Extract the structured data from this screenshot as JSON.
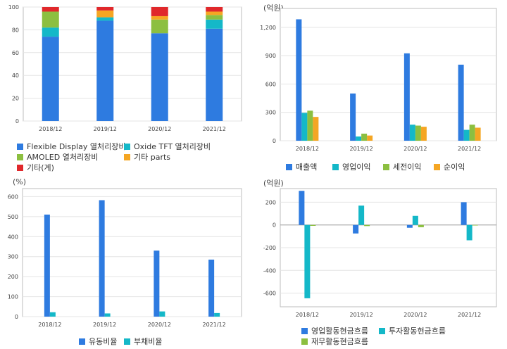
{
  "chart_data": [
    {
      "id": "composition",
      "type": "bar",
      "stacked": true,
      "categories": [
        "2018/12",
        "2019/12",
        "2020/12",
        "2021/12"
      ],
      "ylim": [
        0,
        100
      ],
      "yticks": [
        "0",
        "20",
        "40",
        "60",
        "80",
        "100"
      ],
      "series": [
        {
          "name": "Flexible Display 열처리장비",
          "color": "#2e7be0",
          "values": [
            74,
            88,
            77,
            81
          ]
        },
        {
          "name": "Oxide TFT 열처리장비",
          "color": "#14b8c8",
          "values": [
            8,
            3,
            0,
            8
          ]
        },
        {
          "name": "AMOLED 열처리장비",
          "color": "#8cbf40",
          "values": [
            14,
            0,
            12,
            4
          ]
        },
        {
          "name": "기타 parts",
          "color": "#f5a623",
          "values": [
            0,
            6,
            3,
            3
          ]
        },
        {
          "name": "기타(계)",
          "color": "#e0282b",
          "values": [
            4,
            3,
            8,
            4
          ]
        }
      ]
    },
    {
      "id": "income",
      "type": "bar",
      "unit": "(억원)",
      "categories": [
        "2018/12",
        "2019/12",
        "2020/12",
        "2021/12"
      ],
      "ylim": [
        0,
        1400
      ],
      "yticks": [
        "0",
        "300",
        "600",
        "900",
        "1,200"
      ],
      "series": [
        {
          "name": "매출액",
          "color": "#2e7be0",
          "values": [
            1285,
            500,
            925,
            805
          ]
        },
        {
          "name": "영업이익",
          "color": "#14b8c8",
          "values": [
            295,
            45,
            170,
            115
          ]
        },
        {
          "name": "세전이익",
          "color": "#8cbf40",
          "values": [
            318,
            75,
            160,
            170
          ]
        },
        {
          "name": "순이익",
          "color": "#f5a623",
          "values": [
            252,
            55,
            148,
            138
          ]
        }
      ]
    },
    {
      "id": "ratios",
      "type": "bar",
      "unit": "(%)",
      "categories": [
        "2018/12",
        "2019/12",
        "2020/12",
        "2021/12"
      ],
      "ylim": [
        0,
        640
      ],
      "yticks": [
        "0",
        "100",
        "200",
        "300",
        "400",
        "500",
        "600"
      ],
      "series": [
        {
          "name": "유동비율",
          "color": "#2e7be0",
          "values": [
            510,
            582,
            330,
            285
          ]
        },
        {
          "name": "부채비율",
          "color": "#14b8c8",
          "values": [
            22,
            16,
            26,
            18
          ]
        }
      ]
    },
    {
      "id": "cashflow",
      "type": "bar",
      "unit": "(억원)",
      "categories": [
        "2018/12",
        "2019/12",
        "2020/12",
        "2021/12"
      ],
      "ylim": [
        -720,
        320
      ],
      "yticks": [
        "-600",
        "-400",
        "-200",
        "0",
        "200"
      ],
      "series": [
        {
          "name": "영업활동현금흐름",
          "color": "#2e7be0",
          "values": [
            300,
            -75,
            -25,
            200
          ]
        },
        {
          "name": "투자활동현금흐름",
          "color": "#14b8c8",
          "values": [
            -645,
            170,
            80,
            -135
          ]
        },
        {
          "name": "재무활동현금흐름",
          "color": "#8cbf40",
          "values": [
            -8,
            -10,
            -20,
            -5
          ]
        }
      ]
    }
  ]
}
